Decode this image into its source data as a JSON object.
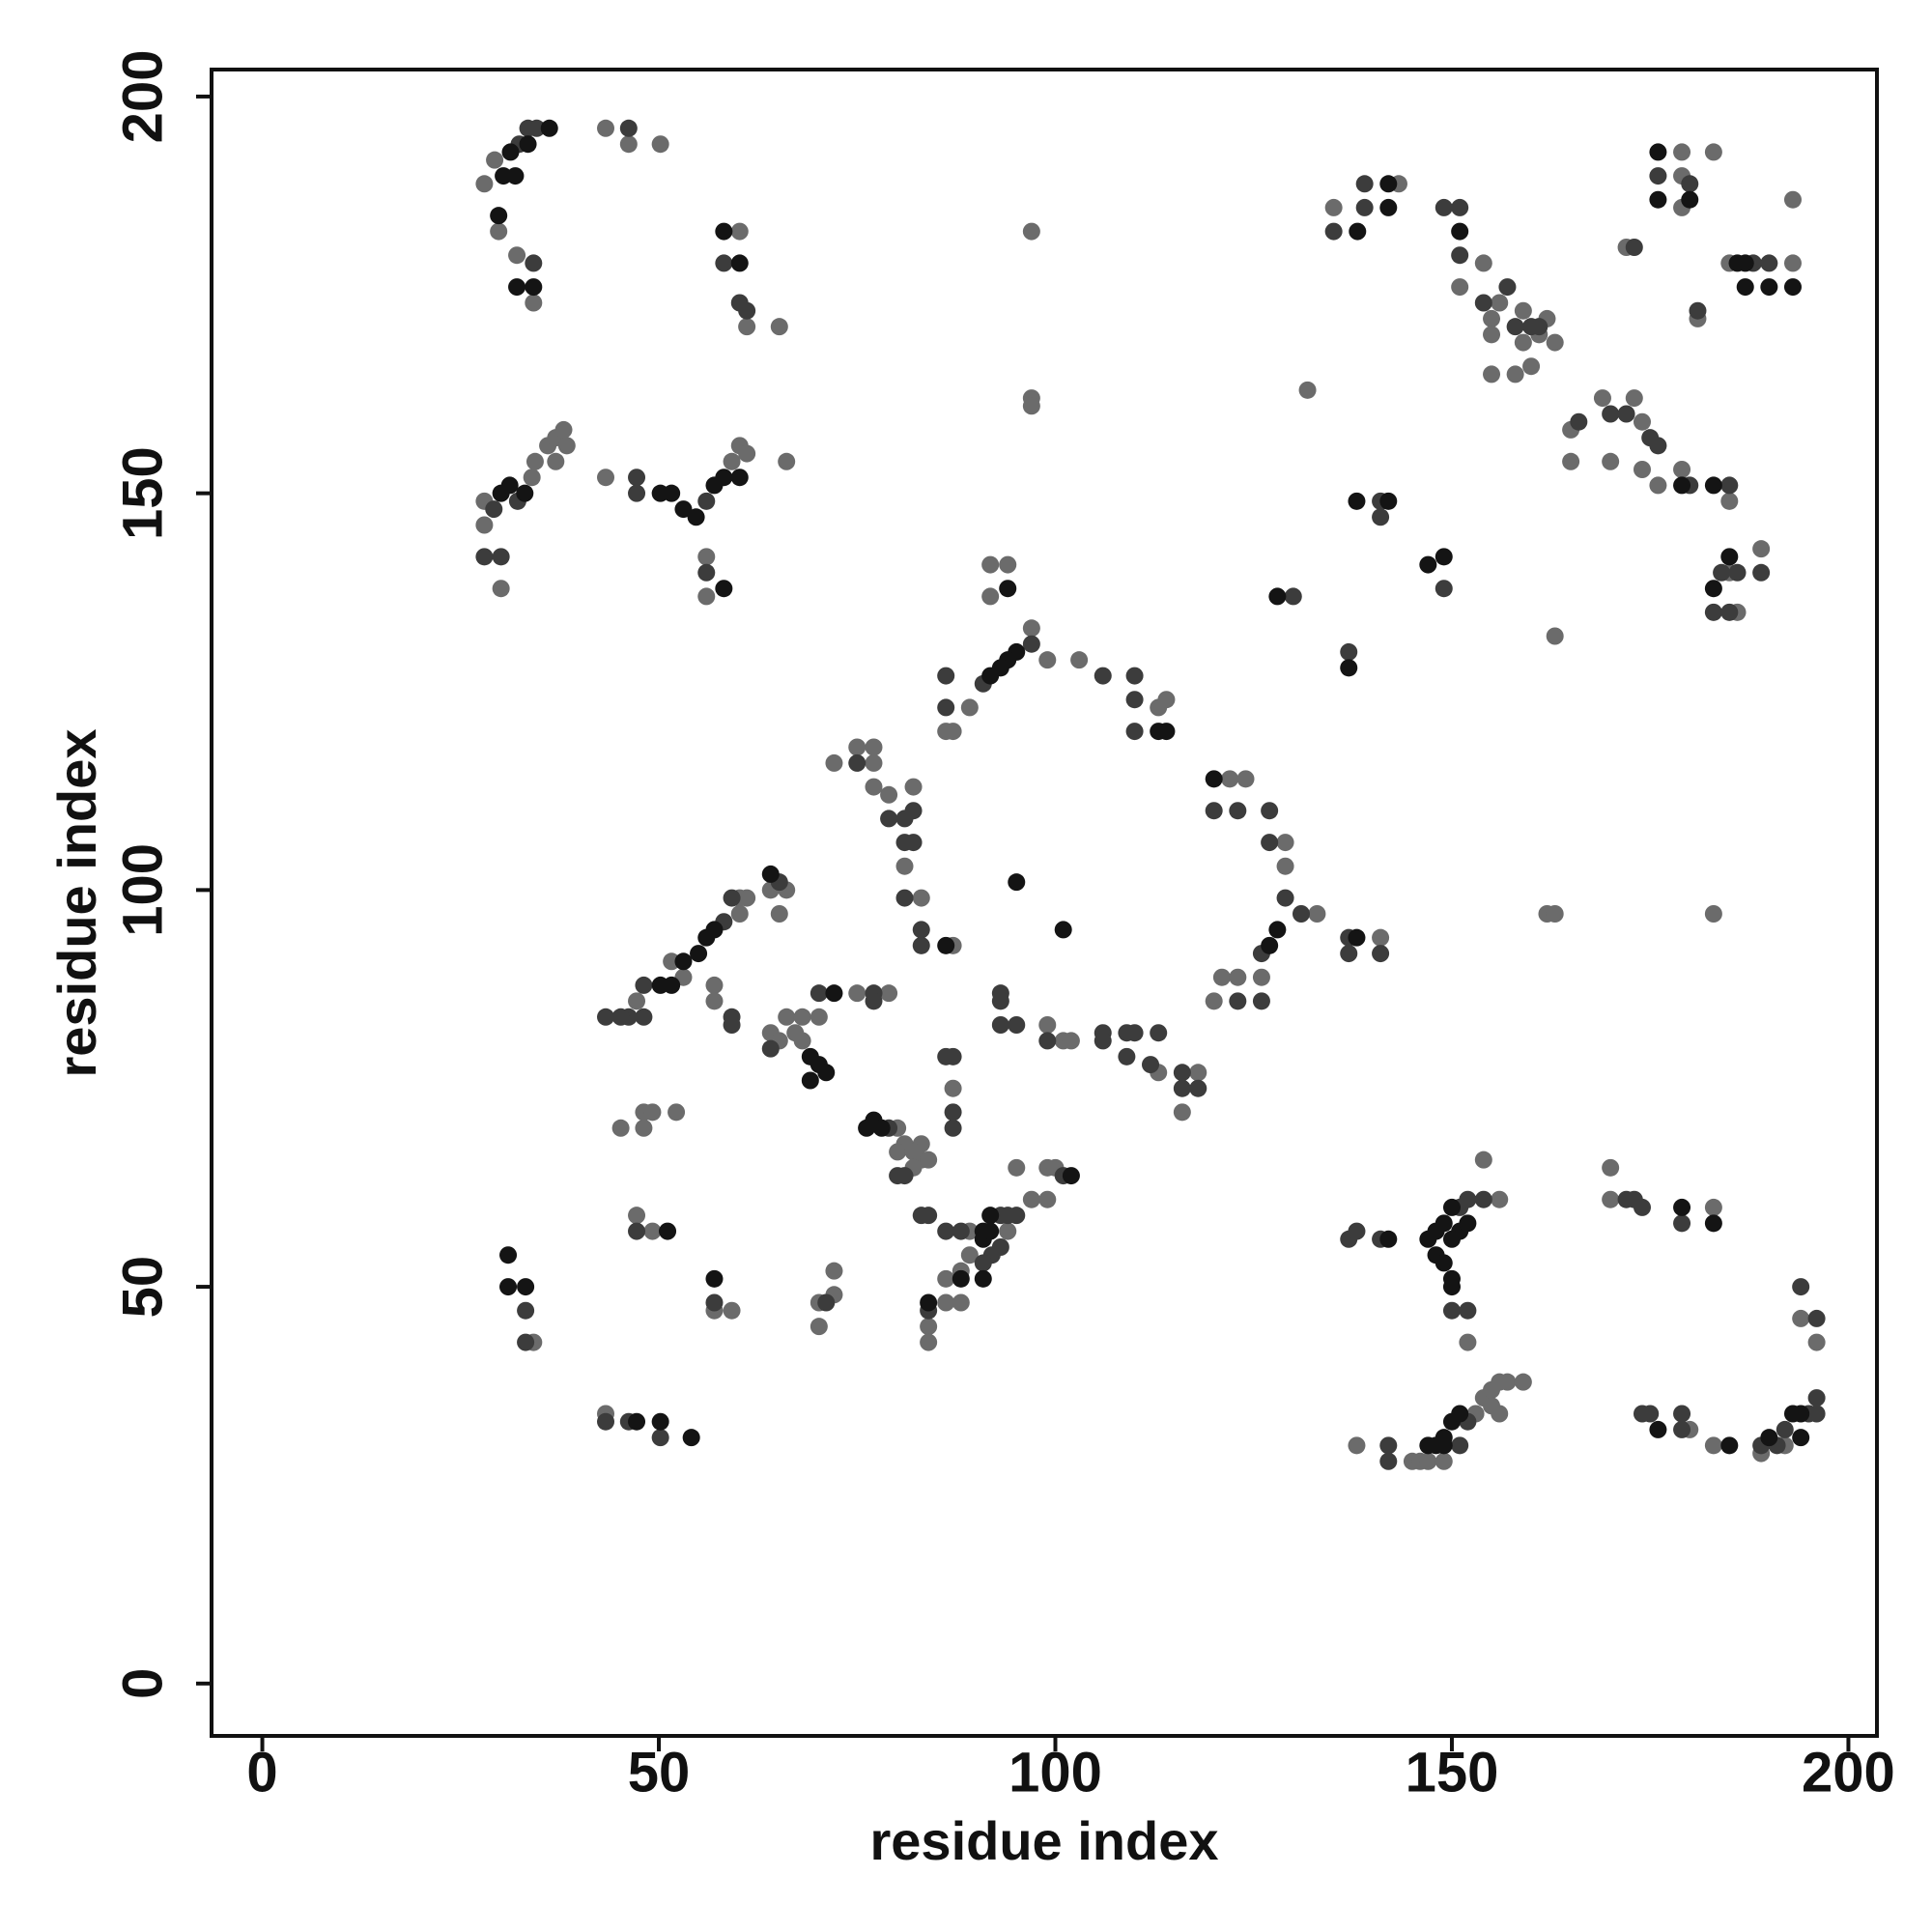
{
  "chart_data": {
    "type": "scatter",
    "xlabel": "residue index",
    "ylabel": "residue index",
    "xlim": [
      -6.4,
      203.6
    ],
    "ylim": [
      -6.6,
      203.4
    ],
    "xticks": [
      0,
      50,
      100,
      150,
      200
    ],
    "yticks": [
      0,
      50,
      100,
      150,
      200
    ],
    "grid": false,
    "series": [
      {
        "color": "#6b6b6b",
        "x": [
          28,
          29.3,
          29.8,
          32.1,
          34.2,
          43.3,
          46.2,
          50.2,
          60.2,
          61.1,
          65.2,
          97,
          97,
          97,
          135.1,
          143.3,
          151,
          154,
          156,
          155,
          155,
          155,
          159,
          161,
          159,
          162,
          163,
          160,
          158,
          131.8,
          165,
          165,
          169,
          173,
          174,
          170,
          174,
          176,
          179,
          185,
          179,
          179,
          179,
          183,
          172,
          181,
          185,
          193,
          193,
          28,
          28,
          34,
          34.4,
          36,
          37,
          38,
          38.4,
          37,
          30.1,
          43.3,
          60.2,
          61.1,
          59.2,
          66.1,
          56,
          56,
          91.8,
          94,
          91.8,
          97,
          86.2,
          89.2,
          87.1,
          99,
          103,
          113,
          114,
          122,
          124,
          129,
          129,
          133,
          126,
          121,
          123,
          120,
          141,
          162,
          163,
          183,
          163,
          185,
          186,
          189,
          66.1,
          64.1,
          65.2,
          60.2,
          61.1,
          60.2,
          51.6,
          47.2,
          53.1,
          57,
          57,
          64.1,
          65.2,
          67.2,
          68.1,
          66.1,
          68.1,
          70.2,
          72.1,
          75,
          77.1,
          77.1,
          77.1,
          79,
          82.1,
          81,
          83.1,
          87.1,
          75,
          79,
          99,
          101,
          102,
          113,
          118,
          116,
          87.1,
          80.1,
          81,
          83.1,
          80.1,
          82.1,
          83.1,
          84,
          82.1,
          89.2,
          94,
          89.2,
          88.1,
          86.2,
          86.2,
          88.1,
          84,
          84,
          97,
          99,
          95.1,
          99,
          100,
          45.2,
          48.1,
          49.2,
          48.1,
          52.2,
          47.2,
          49.2,
          34.2,
          57,
          59.2,
          72.1,
          70.2,
          72.1,
          70.2,
          43.3,
          156,
          154,
          152,
          170,
          170,
          183,
          194,
          196,
          138,
          145,
          146,
          147,
          149,
          153,
          154,
          155,
          156,
          157,
          159,
          156,
          155,
          180,
          183,
          189,
          192
        ],
        "values": [
          189,
          192,
          183,
          180,
          174,
          196,
          194,
          194,
          183,
          171,
          171,
          183,
          162,
          161,
          186,
          189,
          176,
          179,
          174,
          172,
          170,
          165,
          173,
          170,
          169,
          172,
          169,
          166,
          165,
          163,
          158,
          154,
          162,
          162,
          159,
          154,
          153,
          151,
          153,
          149,
          193,
          190,
          186,
          193,
          181,
          172,
          179,
          179,
          187,
          146,
          149,
          152,
          154,
          156,
          157,
          158,
          156,
          154,
          138,
          152,
          156,
          155,
          154,
          154,
          142,
          137,
          141,
          141,
          137,
          133,
          120,
          123,
          120,
          129,
          129,
          123,
          124,
          114,
          114,
          106,
          103,
          97,
          89,
          89,
          89,
          86,
          94,
          97,
          97,
          97,
          132,
          140,
          135,
          143,
          100,
          100,
          97,
          99,
          99,
          97,
          91,
          86,
          89,
          88,
          86,
          82,
          81,
          82,
          81,
          84,
          84,
          84,
          116,
          118,
          118,
          116,
          113,
          112,
          113,
          103,
          99,
          93,
          87,
          87,
          83,
          81,
          81,
          77,
          77,
          72,
          75,
          70,
          68,
          68,
          67,
          67,
          66,
          66,
          65,
          57,
          57,
          54,
          52,
          51,
          48,
          48,
          45,
          43,
          61,
          61,
          65,
          65,
          65,
          70,
          72,
          72,
          70,
          72,
          59,
          57,
          43,
          47,
          47,
          52,
          48,
          49,
          45,
          34,
          61,
          66,
          43,
          65,
          61,
          60,
          46,
          43,
          30,
          28,
          28,
          28,
          28,
          34,
          36,
          37,
          38,
          38,
          38,
          34,
          35,
          32,
          30,
          29,
          30
        ]
      },
      {
        "color": "#3c3c3c",
        "x": [
          32.4,
          33.5,
          34.6,
          34.2,
          46.2,
          58.2,
          60.2,
          61.1,
          135.1,
          139,
          139,
          149,
          151,
          151,
          154,
          157,
          158,
          160,
          161,
          166,
          170,
          172,
          175,
          176,
          180,
          185,
          176,
          180,
          173,
          181,
          188,
          190,
          29.2,
          32.2,
          28,
          30.1,
          47.2,
          47.2,
          56,
          56,
          97,
          90.9,
          86.2,
          86.2,
          106,
          110,
          110,
          110,
          120,
          123,
          127,
          127,
          129,
          131,
          126,
          123,
          126,
          137,
          137,
          141,
          137,
          130,
          141,
          141,
          149,
          184,
          186,
          183,
          185,
          189,
          65.2,
          59.2,
          58.2,
          48.1,
          48.1,
          46.2,
          43.3,
          45.2,
          59.2,
          59.2,
          70.2,
          64.1,
          75,
          79,
          81,
          82.1,
          81,
          82.1,
          81,
          83.1,
          83.1,
          77.1,
          77.1,
          93.1,
          93.1,
          93.1,
          95.1,
          99,
          106,
          106,
          109,
          110,
          113,
          109,
          112,
          116,
          116,
          118,
          86.2,
          87.1,
          87.1,
          87.1,
          79,
          80.1,
          81,
          83.1,
          84,
          86.2,
          88.1,
          93.1,
          94,
          95.1,
          93.1,
          92,
          90.9,
          84,
          101,
          47.2,
          33.2,
          33.2,
          57,
          71.1,
          43.3,
          46.2,
          50.2,
          137,
          138,
          141,
          151,
          152,
          154,
          150,
          152,
          172,
          173,
          174,
          179,
          194,
          196,
          142,
          142,
          152,
          151,
          174,
          175,
          179,
          179,
          189,
          191,
          195,
          196,
          196,
          192
        ],
        "values": [
          194,
          196,
          196,
          179,
          196,
          179,
          174,
          173,
          183,
          186,
          189,
          186,
          186,
          180,
          174,
          176,
          171,
          171,
          171,
          159,
          160,
          160,
          157,
          156,
          151,
          151,
          190,
          189,
          181,
          173,
          179,
          179,
          148,
          149,
          142,
          142,
          152,
          150,
          149,
          140,
          131,
          126,
          127,
          123,
          127,
          127,
          124,
          120,
          110,
          110,
          110,
          106,
          99,
          97,
          92,
          86,
          86,
          94,
          92,
          92,
          130,
          137,
          149,
          147,
          138,
          140,
          140,
          135,
          135,
          140,
          101,
          99,
          96,
          88,
          84,
          84,
          84,
          84,
          84,
          83,
          87,
          80,
          116,
          109,
          109,
          110,
          106,
          106,
          99,
          95,
          93,
          87,
          86,
          87,
          86,
          83,
          83,
          81,
          82,
          81,
          82,
          82,
          82,
          79,
          78,
          77,
          75,
          75,
          79,
          79,
          72,
          70,
          70,
          64,
          64,
          59,
          59,
          57,
          57,
          59,
          59,
          59,
          55,
          54,
          53,
          47,
          64,
          57,
          47,
          43,
          48,
          48,
          33,
          33,
          31,
          56,
          57,
          56,
          60,
          61,
          61,
          47,
          47,
          61,
          61,
          60,
          58,
          50,
          46,
          30,
          28,
          33,
          30,
          34,
          34,
          34,
          32,
          30,
          30,
          34,
          36,
          34,
          32
        ]
      },
      {
        "color": "#141414",
        "x": [
          30.4,
          31.3,
          31.9,
          33.5,
          36.2,
          29.8,
          32.1,
          34.2,
          58.2,
          60.2,
          138.1,
          142,
          142,
          151,
          176,
          176,
          180,
          186,
          187,
          187,
          193,
          190,
          179,
          183,
          30.1,
          31.2,
          33.1,
          50.2,
          51.6,
          53.1,
          54.7,
          57,
          58.2,
          60.2,
          58.2,
          94,
          95.1,
          94,
          93.1,
          91.8,
          113,
          114,
          95.1,
          101,
          120,
          128,
          127,
          138,
          137,
          128,
          138,
          142,
          147,
          149,
          183,
          185,
          64.1,
          57,
          56,
          55,
          53.1,
          51.6,
          50.2,
          69.1,
          70.2,
          69.1,
          71.1,
          72.1,
          86.2,
          76.2,
          77.1,
          78.1,
          90.9,
          91.8,
          90.9,
          91.8,
          88.1,
          90.9,
          84,
          102,
          51.1,
          31,
          31,
          33.2,
          57,
          47.2,
          50.2,
          54.1,
          142,
          147,
          148,
          149,
          150,
          148,
          149,
          150,
          150,
          151,
          152,
          150,
          179,
          183,
          148,
          149,
          150,
          151,
          149,
          147,
          176,
          185,
          190,
          193,
          194,
          194
        ],
        "values": [
          190,
          193,
          190,
          194,
          196,
          185,
          176,
          176,
          183,
          179,
          183,
          189,
          186,
          183,
          193,
          187,
          187,
          179,
          179,
          176,
          176,
          176,
          151,
          151,
          150,
          151,
          150,
          150,
          150,
          148,
          147,
          151,
          152,
          152,
          138,
          138,
          130,
          129,
          128,
          127,
          120,
          120,
          101,
          95,
          114,
          95,
          93,
          94,
          128,
          137,
          149,
          149,
          141,
          142,
          138,
          142,
          102,
          95,
          94,
          92,
          91,
          88,
          88,
          79,
          78,
          76,
          77,
          87,
          93,
          70,
          71,
          70,
          57,
          59,
          56,
          57,
          51,
          51,
          48,
          64,
          57,
          54,
          50,
          50,
          51,
          33,
          33,
          31,
          56,
          56,
          57,
          58,
          60,
          54,
          53,
          51,
          50,
          57,
          58,
          56,
          60,
          58,
          30,
          31,
          33,
          34,
          30,
          30,
          32,
          30,
          31,
          34,
          34,
          31
        ]
      }
    ]
  }
}
